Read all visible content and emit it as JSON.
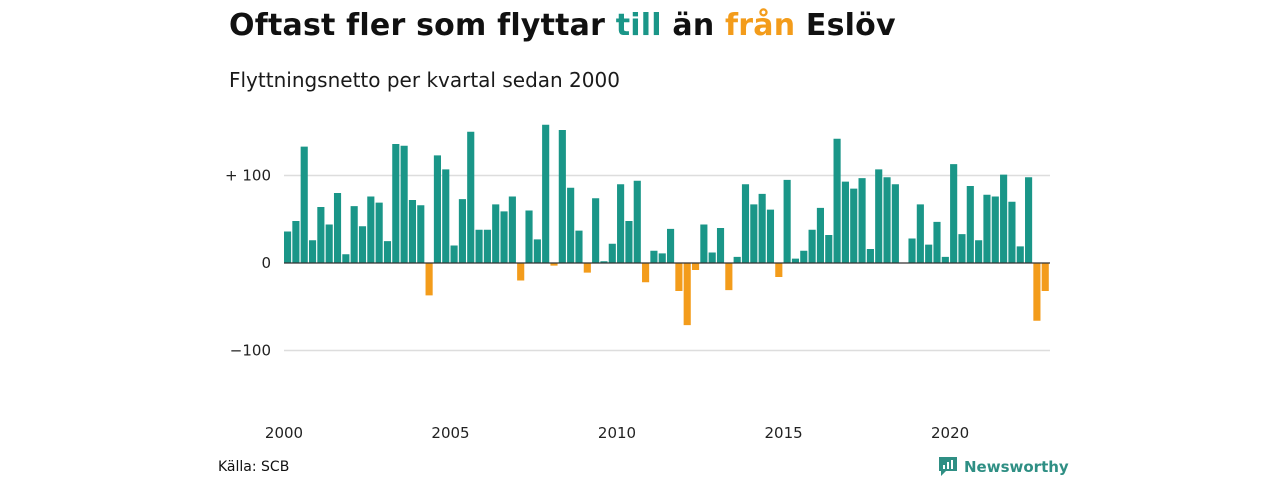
{
  "title": {
    "part1": "Oftast fler som flyttar ",
    "till": "till",
    "part2": " än ",
    "fran": "från",
    "part3": " Eslöv"
  },
  "subtitle": "Flyttningsnetto per kvartal sedan 2000",
  "source": "Källa: SCB",
  "brand": "Newsworthy",
  "colors": {
    "positive": "#1a9688",
    "negative": "#f39c1b",
    "brand": "#2f8f84",
    "grid": "#dddddd"
  },
  "chart_data": {
    "type": "bar",
    "title": "Oftast fler som flyttar till än från Eslöv",
    "subtitle": "Flyttningsnetto per kvartal sedan 2000",
    "xlabel": "",
    "ylabel": "",
    "ylim": [
      -125,
      175
    ],
    "yticks": [
      {
        "value": 100,
        "label": "+ 100"
      },
      {
        "value": 0,
        "label": "0"
      },
      {
        "value": -100,
        "label": "−100"
      }
    ],
    "xticks": [
      {
        "year": 2000,
        "label": "2000"
      },
      {
        "year": 2005,
        "label": "2005"
      },
      {
        "year": 2010,
        "label": "2010"
      },
      {
        "year": 2015,
        "label": "2015"
      },
      {
        "year": 2020,
        "label": "2020"
      }
    ],
    "start_year": 2000,
    "grid": true,
    "legend": "none",
    "series": [
      {
        "values": [
          36,
          48,
          133,
          26,
          64,
          44,
          80,
          10,
          65,
          42,
          76,
          69,
          25,
          136,
          134,
          72,
          66,
          -37,
          123,
          107,
          20,
          73,
          150,
          38,
          38,
          67,
          59,
          76,
          -20,
          60,
          27,
          158,
          -3,
          152,
          86,
          37,
          -11,
          74,
          2,
          22,
          90,
          48,
          94,
          -22,
          14,
          11,
          39,
          -32,
          -71,
          -8,
          44,
          12,
          40,
          -31,
          7,
          90,
          67,
          79,
          61,
          -16,
          95,
          5,
          14,
          38,
          63,
          32,
          142,
          93,
          85,
          97,
          16,
          107,
          98,
          90,
          0,
          28,
          67,
          21,
          47,
          7,
          113,
          33,
          88,
          26,
          78,
          76,
          101,
          70,
          19,
          98,
          -66,
          -32
        ]
      }
    ]
  }
}
